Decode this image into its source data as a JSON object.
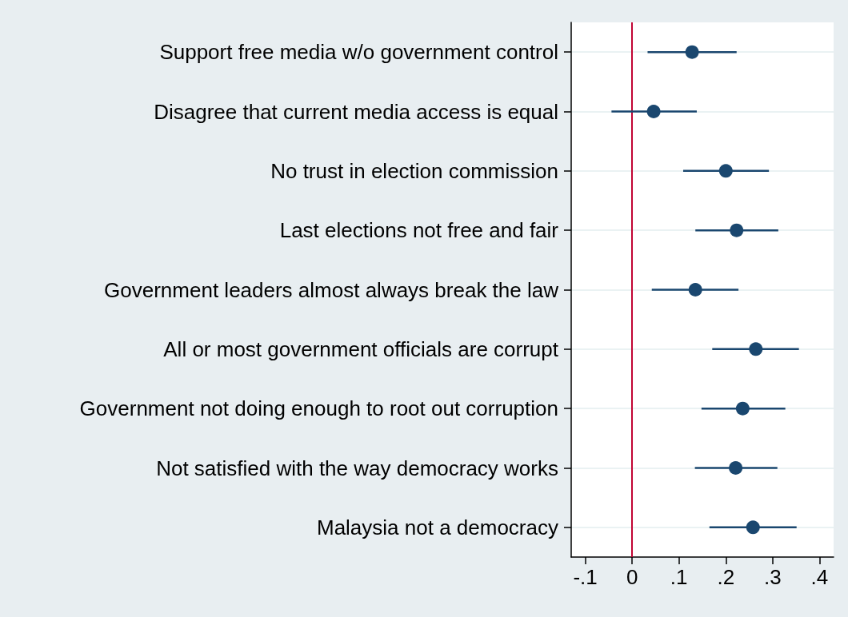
{
  "chart_data": {
    "type": "scatter",
    "orientation": "horizontal",
    "categories": [
      "Support free media w/o government control",
      "Disagree that current media access is equal",
      "No trust in election commission",
      "Last elections not free and fair",
      "Government leaders almost always break the law",
      "All or most government officials are corrupt",
      "Government not doing enough to root out corruption",
      "Not satisfied with the way democracy works",
      "Malaysia not a democracy"
    ],
    "series": [
      {
        "color": "#1a476f",
        "values": [
          0.128,
          0.046,
          0.2,
          0.223,
          0.135,
          0.264,
          0.236,
          0.221,
          0.258
        ],
        "errors": [
          [
            0.033,
            0.223
          ],
          [
            -0.044,
            0.138
          ],
          [
            0.109,
            0.292
          ],
          [
            0.135,
            0.312
          ],
          [
            0.042,
            0.227
          ],
          [
            0.171,
            0.356
          ],
          [
            0.148,
            0.327
          ],
          [
            0.134,
            0.31
          ],
          [
            0.165,
            0.351
          ]
        ]
      }
    ],
    "xlim": [
      -0.13,
      0.43
    ],
    "xticks": [
      {
        "value": -0.1,
        "label": "-.1"
      },
      0,
      {
        "value": 0.1,
        "label": ".1"
      },
      {
        "value": 0.2,
        "label": ".2"
      },
      {
        "value": 0.3,
        "label": ".3"
      },
      {
        "value": 0.4,
        "label": ".4"
      }
    ],
    "ref_lines": [
      {
        "axis": "x",
        "value": 0,
        "color": "#c10534"
      }
    ],
    "grid": "y",
    "marker": "circle"
  }
}
